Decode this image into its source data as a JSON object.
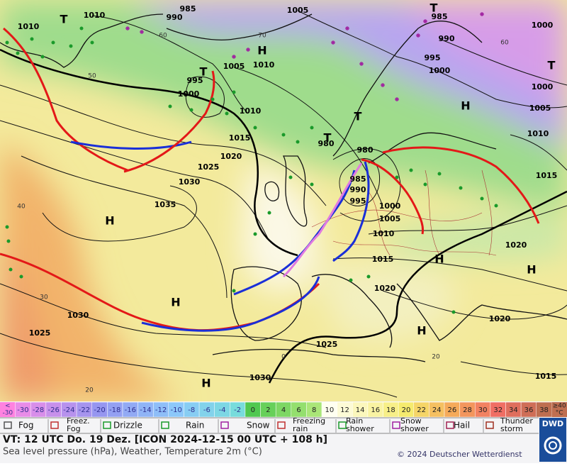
{
  "map": {
    "pressure_labels": [
      "1010",
      "985",
      "990",
      "1005",
      "985",
      "990",
      "1000",
      "1010",
      "995",
      "1000",
      "1005",
      "1010",
      "995",
      "1000",
      "1010",
      "1015",
      "1020",
      "1025",
      "1030",
      "1035",
      "980",
      "980",
      "985",
      "990",
      "995",
      "1000",
      "1005",
      "1010",
      "1015",
      "1020",
      "1000",
      "1005",
      "1010",
      "1015",
      "1020",
      "1020",
      "1025",
      "1030",
      "1030",
      "1025",
      "1015"
    ],
    "centers": [
      "H",
      "H",
      "H",
      "H",
      "H",
      "H",
      "H",
      "H",
      "T",
      "T",
      "T",
      "T",
      "T",
      "T"
    ],
    "temperature_labels": [
      "60",
      "60",
      "70",
      "50",
      "40",
      "30",
      "20",
      "0",
      "20"
    ]
  },
  "temperature_scale": {
    "low_end": [
      "<",
      "-30"
    ],
    "cells": [
      "-30",
      "-28",
      "-26",
      "-24",
      "-22",
      "-20",
      "-18",
      "-16",
      "-14",
      "-12",
      "-10",
      "-8",
      "-6",
      "-4",
      "-2",
      "0",
      "2",
      "4",
      "6",
      "8",
      "10",
      "12",
      "14",
      "16",
      "18",
      "20",
      "22",
      "24",
      "26",
      "28",
      "30",
      "32",
      "34",
      "36",
      "38"
    ],
    "high_end": [
      "≥40",
      "°C"
    ]
  },
  "legend": [
    {
      "lines": [
        "Fog"
      ]
    },
    {
      "lines": [
        "Freez.",
        "Fog"
      ]
    },
    {
      "lines": [
        "Drizzle"
      ]
    },
    {
      "lines": [
        "Rain"
      ]
    },
    {
      "lines": [
        "Snow"
      ]
    },
    {
      "lines": [
        "Freezing",
        "rain"
      ]
    },
    {
      "lines": [
        "Rain",
        "shower"
      ]
    },
    {
      "lines": [
        "Snow",
        "shower"
      ]
    },
    {
      "lines": [
        "Hail"
      ]
    },
    {
      "lines": [
        "Thunder",
        "storm"
      ]
    }
  ],
  "footer": {
    "valid_time": "VT: 12 UTC Do.  19 Dez. [ICON 2024-12-15  00 UTC + 108 h]",
    "description": "Sea level pressure (hPa), Weather, Temperature 2m (°C)",
    "copyright": "© 2024 Deutscher Wetterdienst",
    "logo": "DWD"
  }
}
